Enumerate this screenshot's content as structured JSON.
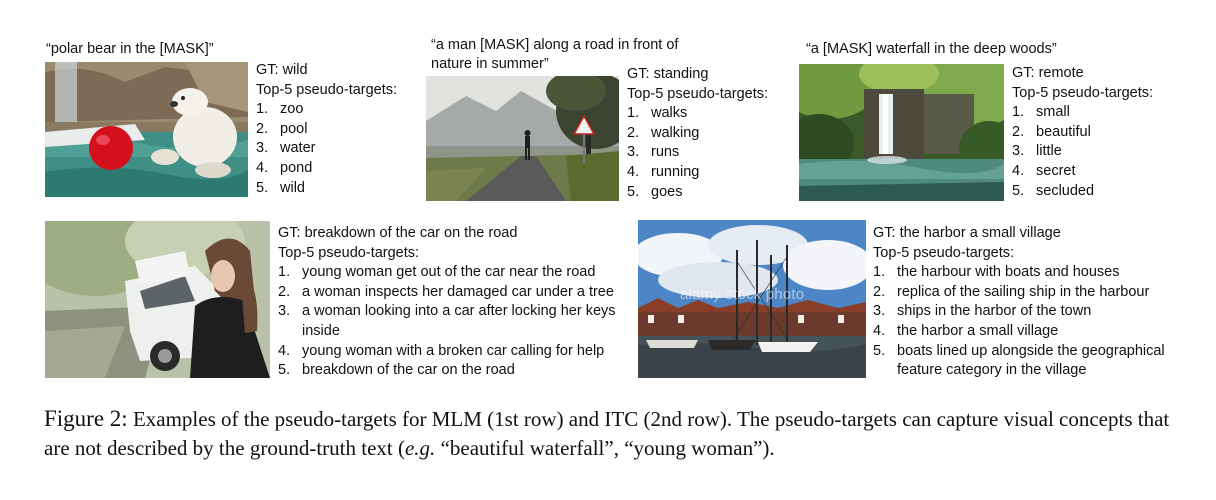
{
  "row1": [
    {
      "caption": "“polar bear in the [MASK]”",
      "gt": "GT: wild",
      "top_label": "Top-5 pseudo-targets:",
      "items": [
        {
          "n": "1.",
          "t": "zoo"
        },
        {
          "n": "2.",
          "t": "pool"
        },
        {
          "n": "3.",
          "t": "water"
        },
        {
          "n": "4.",
          "t": "pond"
        },
        {
          "n": "5.",
          "t": "wild"
        }
      ]
    },
    {
      "caption": "“a man [MASK] along a road in front of nature in summer”",
      "gt": "GT: standing",
      "top_label": "Top-5 pseudo-targets:",
      "items": [
        {
          "n": "1.",
          "t": "walks"
        },
        {
          "n": "2.",
          "t": "walking"
        },
        {
          "n": "3.",
          "t": "runs"
        },
        {
          "n": "4.",
          "t": "running"
        },
        {
          "n": "5.",
          "t": "goes"
        }
      ]
    },
    {
      "caption": "“a [MASK] waterfall in the deep woods”",
      "gt": "GT: remote",
      "top_label": "Top-5 pseudo-targets:",
      "items": [
        {
          "n": "1.",
          "t": "small"
        },
        {
          "n": "2.",
          "t": "beautiful"
        },
        {
          "n": "3.",
          "t": "little"
        },
        {
          "n": "4.",
          "t": "secret"
        },
        {
          "n": "5.",
          "t": "secluded"
        }
      ]
    }
  ],
  "row2": [
    {
      "gt": "GT: breakdown of the car on the road",
      "top_label": "Top-5 pseudo-targets:",
      "items": [
        {
          "n": "1.",
          "t": "young woman get out of the car near the road"
        },
        {
          "n": "2.",
          "t": "a woman inspects her damaged car under a tree"
        },
        {
          "n": "3.",
          "t": "a woman looking into a car after locking her keys inside"
        },
        {
          "n": "4.",
          "t": "young woman with a broken car calling for help"
        },
        {
          "n": "5.",
          "t": "breakdown of the car on the road"
        }
      ]
    },
    {
      "gt": "GT: the harbor a small village",
      "top_label": "Top-5 pseudo-targets:",
      "items": [
        {
          "n": "1.",
          "t": "the harbour with boats and houses"
        },
        {
          "n": "2.",
          "t": "replica of the sailing ship in the harbour"
        },
        {
          "n": "3.",
          "t": "ships in the harbor of the town"
        },
        {
          "n": "4.",
          "t": "the harbor a small village"
        },
        {
          "n": "5.",
          "t": "boats lined up alongside the geographical feature category in the village"
        }
      ],
      "watermark": "alamy stock photo"
    }
  ],
  "figure_caption": {
    "label": "Figure 2:",
    "text_a": "Examples of the pseudo-targets for MLM (1st row) and ITC (2nd row). The pseudo-targets can capture visual concepts that are not described by the ground-truth text (",
    "eg": "e.g.",
    "text_b": " “beautiful waterfall”, “young woman”)."
  }
}
